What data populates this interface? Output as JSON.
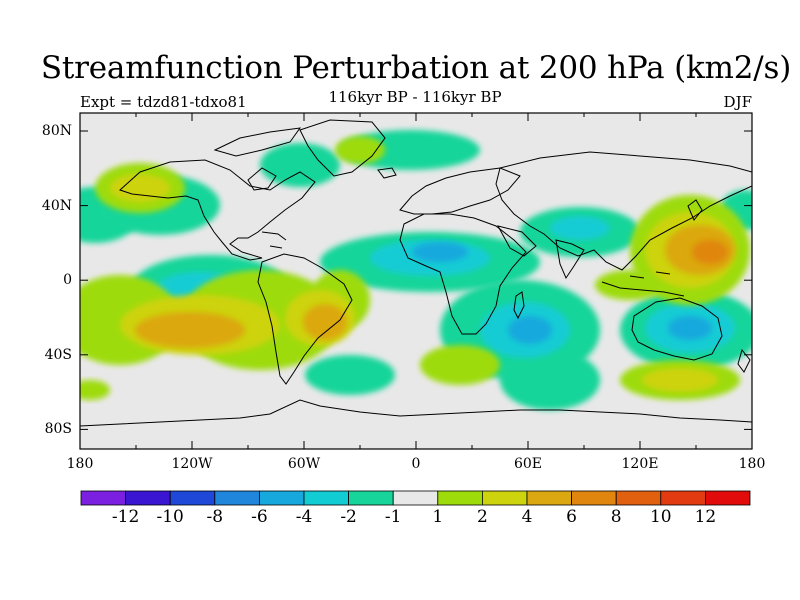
{
  "title": "Streamfunction Perturbation at 200 hPa (km2/s)",
  "experiment": "Expt = tdzd81-tdxo81",
  "subtitle": "116kyr BP - 116kyr BP",
  "season": "DJF",
  "lat_ticks": [
    "80N",
    "40N",
    "0",
    "40S",
    "80S"
  ],
  "lon_ticks": [
    "180",
    "120W",
    "60W",
    "0",
    "60E",
    "120E",
    "180"
  ],
  "colorbar": {
    "labels": [
      "-12",
      "-10",
      "-8",
      "-6",
      "-4",
      "-2",
      "-1",
      "1",
      "2",
      "4",
      "6",
      "8",
      "10",
      "12"
    ],
    "colors": [
      "#7b20e0",
      "#3a16d2",
      "#1f48d8",
      "#1f86dc",
      "#17a9dd",
      "#12ccd4",
      "#17d59a",
      "#e8e8e8",
      "#9edb0b",
      "#cdd30c",
      "#dba811",
      "#e0860f",
      "#e0600f",
      "#e33b11",
      "#e20b0b"
    ]
  },
  "blob_colors": {
    "neg1": "#17d59a",
    "neg2": "#12ccd4",
    "neg3": "#17a9dd",
    "pos1": "#9edb0b",
    "pos2": "#cdd30c",
    "pos3": "#dba811",
    "pos4": "#e0860f",
    "land": "#000000",
    "sea": "#e8e8e8"
  }
}
